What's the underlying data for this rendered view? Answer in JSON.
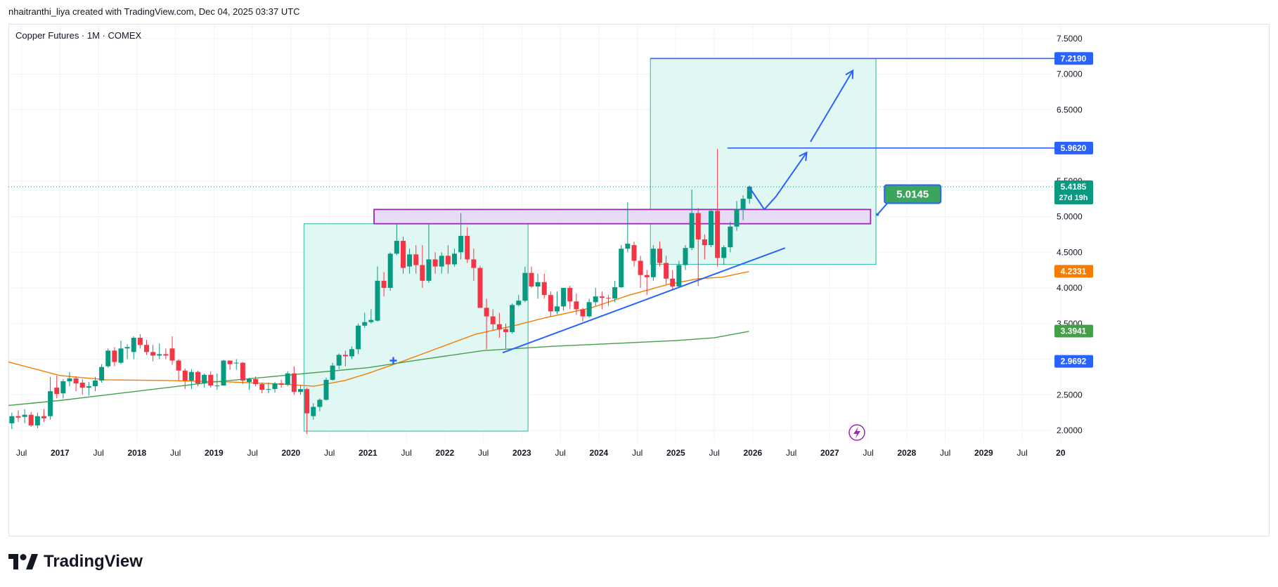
{
  "caption": "nhaitranthi_liya created with TradingView.com, Dec 04, 2025 03:37 UTC",
  "brand": {
    "name": "TradingView",
    "logo_icon": "tradingview-logo-icon"
  },
  "colors": {
    "up": "#089981",
    "down": "#f23645",
    "ma_fast": "#f57c00",
    "ma_slow": "#43a047",
    "trend": "#2962ff",
    "zone_fill": "#e0f7f4",
    "zone_border": "#4dbfae",
    "resistance_fill": "#e6dcf5",
    "resistance_border": "#9c27b0",
    "grid": "#f0f3fa"
  },
  "chart_data": {
    "type": "candlestick",
    "title": "Copper Futures · 1M · COMEX",
    "ylim": [
      1.92,
      7.7
    ],
    "y_ticks": [
      "2.0000",
      "2.5000",
      "3.0000",
      "3.5000",
      "4.0000",
      "4.5000",
      "5.0000",
      "5.5000",
      "6.5000",
      "7.0000",
      "7.5000"
    ],
    "x_ticks": [
      {
        "label": "Jul",
        "t": 2016.5,
        "bold": false
      },
      {
        "label": "2017",
        "t": 2017.0,
        "bold": true
      },
      {
        "label": "Jul",
        "t": 2017.5,
        "bold": false
      },
      {
        "label": "2018",
        "t": 2018.0,
        "bold": true
      },
      {
        "label": "Jul",
        "t": 2018.5,
        "bold": false
      },
      {
        "label": "2019",
        "t": 2019.0,
        "bold": true
      },
      {
        "label": "Jul",
        "t": 2019.5,
        "bold": false
      },
      {
        "label": "2020",
        "t": 2020.0,
        "bold": true
      },
      {
        "label": "Jul",
        "t": 2020.5,
        "bold": false
      },
      {
        "label": "2021",
        "t": 2021.0,
        "bold": true
      },
      {
        "label": "Jul",
        "t": 2021.5,
        "bold": false
      },
      {
        "label": "2022",
        "t": 2022.0,
        "bold": true
      },
      {
        "label": "Jul",
        "t": 2022.5,
        "bold": false
      },
      {
        "label": "2023",
        "t": 2023.0,
        "bold": true
      },
      {
        "label": "Jul",
        "t": 2023.5,
        "bold": false
      },
      {
        "label": "2024",
        "t": 2024.0,
        "bold": true
      },
      {
        "label": "Jul",
        "t": 2024.5,
        "bold": false
      },
      {
        "label": "2025",
        "t": 2025.0,
        "bold": true
      },
      {
        "label": "Jul",
        "t": 2025.5,
        "bold": false
      },
      {
        "label": "2026",
        "t": 2026.0,
        "bold": true
      },
      {
        "label": "Jul",
        "t": 2026.5,
        "bold": false
      },
      {
        "label": "2027",
        "t": 2027.0,
        "bold": true
      },
      {
        "label": "Jul",
        "t": 2027.5,
        "bold": false
      },
      {
        "label": "2028",
        "t": 2028.0,
        "bold": true
      },
      {
        "label": "Jul",
        "t": 2028.5,
        "bold": false
      },
      {
        "label": "2029",
        "t": 2029.0,
        "bold": true
      },
      {
        "label": "Jul",
        "t": 2029.5,
        "bold": false
      },
      {
        "label": "20",
        "t": 2030.0,
        "bold": true
      }
    ],
    "candles": [
      [
        "2016-05",
        2.1,
        2.25,
        2.02,
        2.2
      ],
      [
        "2016-06",
        2.2,
        2.28,
        2.12,
        2.18
      ],
      [
        "2016-07",
        2.19,
        2.3,
        2.1,
        2.22
      ],
      [
        "2016-08",
        2.22,
        2.26,
        2.05,
        2.07
      ],
      [
        "2016-09",
        2.07,
        2.25,
        2.03,
        2.2
      ],
      [
        "2016-10",
        2.2,
        2.3,
        2.12,
        2.17
      ],
      [
        "2016-11",
        2.2,
        2.75,
        2.15,
        2.55
      ],
      [
        "2016-12",
        2.6,
        2.77,
        2.45,
        2.51
      ],
      [
        "2017-01",
        2.52,
        2.72,
        2.45,
        2.69
      ],
      [
        "2017-02",
        2.69,
        2.82,
        2.62,
        2.73
      ],
      [
        "2017-03",
        2.73,
        2.76,
        2.55,
        2.66
      ],
      [
        "2017-04",
        2.67,
        2.72,
        2.5,
        2.6
      ],
      [
        "2017-05",
        2.6,
        2.68,
        2.49,
        2.62
      ],
      [
        "2017-06",
        2.62,
        2.75,
        2.55,
        2.7
      ],
      [
        "2017-07",
        2.7,
        2.93,
        2.67,
        2.89
      ],
      [
        "2017-08",
        2.9,
        3.15,
        2.88,
        3.12
      ],
      [
        "2017-09",
        3.12,
        3.17,
        2.9,
        2.96
      ],
      [
        "2017-10",
        2.95,
        3.26,
        2.93,
        3.15
      ],
      [
        "2017-11",
        3.15,
        3.21,
        3.0,
        3.17
      ],
      [
        "2017-12",
        3.1,
        3.32,
        3.0,
        3.3
      ],
      [
        "2018-01",
        3.3,
        3.35,
        3.15,
        3.2
      ],
      [
        "2018-02",
        3.2,
        3.27,
        3.06,
        3.1
      ],
      [
        "2018-03",
        3.1,
        3.2,
        2.97,
        3.05
      ],
      [
        "2018-04",
        3.05,
        3.22,
        3.0,
        3.07
      ],
      [
        "2018-05",
        3.07,
        3.15,
        3.0,
        3.05
      ],
      [
        "2018-06",
        3.15,
        3.32,
        2.92,
        2.98
      ],
      [
        "2018-07",
        2.98,
        3.0,
        2.7,
        2.84
      ],
      [
        "2018-08",
        2.84,
        2.87,
        2.58,
        2.7
      ],
      [
        "2018-09",
        2.7,
        2.86,
        2.58,
        2.82
      ],
      [
        "2018-10",
        2.82,
        2.84,
        2.62,
        2.66
      ],
      [
        "2018-11",
        2.66,
        2.8,
        2.6,
        2.78
      ],
      [
        "2018-12",
        2.78,
        2.83,
        2.6,
        2.63
      ],
      [
        "2019-01",
        2.63,
        2.8,
        2.57,
        2.63
      ],
      [
        "2019-02",
        2.63,
        2.99,
        2.63,
        2.98
      ],
      [
        "2019-03",
        2.98,
        2.98,
        2.85,
        2.93
      ],
      [
        "2019-04",
        2.94,
        3.0,
        2.85,
        2.95
      ],
      [
        "2019-05",
        2.95,
        2.96,
        2.65,
        2.7
      ],
      [
        "2019-06",
        2.68,
        2.74,
        2.57,
        2.72
      ],
      [
        "2019-07",
        2.72,
        2.76,
        2.62,
        2.65
      ],
      [
        "2019-08",
        2.65,
        2.67,
        2.52,
        2.57
      ],
      [
        "2019-09",
        2.57,
        2.67,
        2.52,
        2.58
      ],
      [
        "2019-10",
        2.58,
        2.68,
        2.53,
        2.66
      ],
      [
        "2019-11",
        2.66,
        2.71,
        2.6,
        2.64
      ],
      [
        "2019-12",
        2.64,
        2.83,
        2.62,
        2.8
      ],
      [
        "2020-01",
        2.8,
        2.9,
        2.5,
        2.54
      ],
      [
        "2020-02",
        2.54,
        2.64,
        2.5,
        2.58
      ],
      [
        "2020-03",
        2.58,
        2.6,
        1.95,
        2.24
      ],
      [
        "2020-04",
        2.2,
        2.38,
        2.15,
        2.33
      ],
      [
        "2020-05",
        2.33,
        2.45,
        2.27,
        2.43
      ],
      [
        "2020-06",
        2.43,
        2.74,
        2.42,
        2.71
      ],
      [
        "2020-07",
        2.71,
        2.95,
        2.7,
        2.91
      ],
      [
        "2020-08",
        2.91,
        3.08,
        2.86,
        3.06
      ],
      [
        "2020-09",
        3.06,
        3.12,
        2.9,
        3.04
      ],
      [
        "2020-10",
        3.04,
        3.18,
        3.0,
        3.14
      ],
      [
        "2020-11",
        3.14,
        3.5,
        3.07,
        3.47
      ],
      [
        "2020-12",
        3.47,
        3.65,
        3.44,
        3.52
      ],
      [
        "2021-01",
        3.52,
        3.7,
        3.5,
        3.55
      ],
      [
        "2021-02",
        3.54,
        4.3,
        3.53,
        4.1
      ],
      [
        "2021-03",
        4.1,
        4.22,
        3.88,
        4.0
      ],
      [
        "2021-04",
        4.0,
        4.5,
        3.96,
        4.48
      ],
      [
        "2021-05",
        4.48,
        4.9,
        4.46,
        4.66
      ],
      [
        "2021-06",
        4.66,
        4.72,
        4.2,
        4.28
      ],
      [
        "2021-07",
        4.3,
        4.55,
        4.2,
        4.47
      ],
      [
        "2021-08",
        4.47,
        4.6,
        4.2,
        4.32
      ],
      [
        "2021-09",
        4.32,
        4.6,
        4.0,
        4.1
      ],
      [
        "2021-10",
        4.1,
        4.9,
        4.07,
        4.4
      ],
      [
        "2021-11",
        4.4,
        4.5,
        4.2,
        4.3
      ],
      [
        "2021-12",
        4.3,
        4.5,
        4.2,
        4.45
      ],
      [
        "2022-01",
        4.45,
        4.6,
        4.2,
        4.33
      ],
      [
        "2022-02",
        4.33,
        4.55,
        4.3,
        4.48
      ],
      [
        "2022-03",
        4.5,
        5.05,
        4.4,
        4.73
      ],
      [
        "2022-04",
        4.73,
        4.85,
        4.35,
        4.4
      ],
      [
        "2022-05",
        4.4,
        4.55,
        4.1,
        4.28
      ],
      [
        "2022-06",
        4.28,
        4.31,
        3.72,
        3.72
      ],
      [
        "2022-07",
        3.72,
        3.85,
        3.14,
        3.6
      ],
      [
        "2022-08",
        3.6,
        3.7,
        3.4,
        3.49
      ],
      [
        "2022-09",
        3.49,
        3.65,
        3.3,
        3.42
      ],
      [
        "2022-10",
        3.42,
        3.5,
        3.15,
        3.38
      ],
      [
        "2022-11",
        3.38,
        3.78,
        3.36,
        3.76
      ],
      [
        "2022-12",
        3.76,
        3.9,
        3.74,
        3.82
      ],
      [
        "2023-01",
        3.82,
        4.3,
        3.8,
        4.21
      ],
      [
        "2023-02",
        4.21,
        4.3,
        4.0,
        4.02
      ],
      [
        "2023-03",
        4.02,
        4.2,
        3.85,
        4.08
      ],
      [
        "2023-04",
        4.08,
        4.2,
        3.85,
        3.9
      ],
      [
        "2023-05",
        3.9,
        3.95,
        3.6,
        3.67
      ],
      [
        "2023-06",
        3.67,
        3.95,
        3.63,
        3.74
      ],
      [
        "2023-07",
        3.74,
        4.0,
        3.68,
        4.0
      ],
      [
        "2023-08",
        4.0,
        4.03,
        3.7,
        3.81
      ],
      [
        "2023-09",
        3.81,
        3.92,
        3.62,
        3.7
      ],
      [
        "2023-10",
        3.7,
        3.72,
        3.53,
        3.6
      ],
      [
        "2023-11",
        3.6,
        3.85,
        3.58,
        3.8
      ],
      [
        "2023-12",
        3.8,
        4.0,
        3.75,
        3.88
      ],
      [
        "2024-01",
        3.88,
        3.95,
        3.7,
        3.86
      ],
      [
        "2024-02",
        3.86,
        3.9,
        3.75,
        3.85
      ],
      [
        "2024-03",
        3.85,
        4.1,
        3.8,
        4.01
      ],
      [
        "2024-04",
        4.01,
        4.6,
        4.0,
        4.55
      ],
      [
        "2024-05",
        4.55,
        5.2,
        4.5,
        4.62
      ],
      [
        "2024-06",
        4.6,
        4.65,
        4.3,
        4.38
      ],
      [
        "2024-07",
        4.38,
        4.45,
        4.0,
        4.18
      ],
      [
        "2024-08",
        4.18,
        4.25,
        3.9,
        4.15
      ],
      [
        "2024-09",
        4.15,
        4.6,
        4.1,
        4.55
      ],
      [
        "2024-10",
        4.55,
        4.65,
        4.3,
        4.35
      ],
      [
        "2024-11",
        4.35,
        4.45,
        4.05,
        4.13
      ],
      [
        "2024-12",
        4.13,
        4.25,
        3.98,
        4.02
      ],
      [
        "2025-01",
        4.02,
        4.38,
        4.0,
        4.32
      ],
      [
        "2025-02",
        4.32,
        4.6,
        4.25,
        4.56
      ],
      [
        "2025-03",
        4.56,
        5.38,
        4.53,
        5.05
      ],
      [
        "2025-04",
        5.05,
        5.12,
        4.03,
        4.68
      ],
      [
        "2025-05",
        4.68,
        4.75,
        4.4,
        4.6
      ],
      [
        "2025-06",
        4.6,
        5.1,
        4.57,
        5.08
      ],
      [
        "2025-07",
        5.08,
        5.95,
        4.3,
        4.42
      ],
      [
        "2025-08",
        4.42,
        4.6,
        4.32,
        4.57
      ],
      [
        "2025-09",
        4.57,
        4.93,
        4.5,
        4.86
      ],
      [
        "2025-10",
        4.86,
        5.22,
        4.8,
        5.1
      ],
      [
        "2025-11",
        5.1,
        5.3,
        4.95,
        5.25
      ],
      [
        "2025-12",
        5.25,
        5.44,
        5.18,
        5.42
      ]
    ],
    "series": [
      {
        "name": "",
        "color": "#f57c00",
        "points": [
          [
            2016.33,
            2.96
          ],
          [
            2017.0,
            2.77
          ],
          [
            2017.6,
            2.71
          ],
          [
            2018.4,
            2.7
          ],
          [
            2019.2,
            2.68
          ],
          [
            2019.9,
            2.65
          ],
          [
            2020.3,
            2.62
          ],
          [
            2020.7,
            2.7
          ],
          [
            2021.0,
            2.8
          ],
          [
            2021.4,
            2.95
          ],
          [
            2021.9,
            3.15
          ],
          [
            2022.4,
            3.35
          ],
          [
            2022.9,
            3.47
          ],
          [
            2023.3,
            3.58
          ],
          [
            2023.9,
            3.72
          ],
          [
            2024.4,
            3.9
          ],
          [
            2024.9,
            4.05
          ],
          [
            2025.3,
            4.13
          ],
          [
            2025.6,
            4.15
          ],
          [
            2025.95,
            4.23
          ]
        ]
      },
      {
        "name": "",
        "color": "#43a047",
        "points": [
          [
            2016.33,
            2.35
          ],
          [
            2017.0,
            2.42
          ],
          [
            2018.0,
            2.55
          ],
          [
            2019.0,
            2.68
          ],
          [
            2020.0,
            2.78
          ],
          [
            2021.0,
            2.88
          ],
          [
            2021.6,
            2.98
          ],
          [
            2022.5,
            3.12
          ],
          [
            2023.4,
            3.18
          ],
          [
            2024.2,
            3.22
          ],
          [
            2025.0,
            3.26
          ],
          [
            2025.5,
            3.3
          ],
          [
            2025.95,
            3.39
          ]
        ]
      }
    ],
    "drawings": {
      "zone1": {
        "t1": 2020.17,
        "t2": 2023.08,
        "p1": 1.99,
        "p2": 4.9
      },
      "zone2": {
        "t1": 2024.67,
        "t2": 2027.6,
        "p1": 4.33,
        "p2": 7.219
      },
      "resistance": {
        "t1": 2021.08,
        "t2": 2027.53,
        "p1": 4.9,
        "p2": 5.1
      },
      "trendline": {
        "t1": 2022.75,
        "p1": 3.09,
        "t2": 2026.42,
        "p2": 4.56
      },
      "level_7219": {
        "t1": 2024.67,
        "price": 7.219
      },
      "level_5962": {
        "t1": 2025.67,
        "price": 5.962
      },
      "current_price": 5.4185,
      "projection_path": [
        [
          2025.95,
          5.42
        ],
        [
          2026.15,
          5.1
        ],
        [
          2026.3,
          5.28
        ],
        [
          2026.7,
          5.9
        ]
      ],
      "projection_path_2": [
        [
          2026.75,
          6.05
        ],
        [
          2027.3,
          7.05
        ]
      ],
      "cross_marker": {
        "t": 2021.33,
        "p": 2.98
      },
      "callout": {
        "label": "5.0145",
        "anchor_t": 2027.62,
        "anchor_p": 5.03
      }
    },
    "price_labels": [
      {
        "text": "7.2190",
        "price": 7.219,
        "color": "#2962ff"
      },
      {
        "text": "5.9620",
        "price": 5.962,
        "color": "#2962ff"
      },
      {
        "text": "5.4185",
        "price": 5.4185,
        "color": "#089981",
        "sub": "27d 19h"
      },
      {
        "text": "4.2331",
        "price": 4.2331,
        "color": "#f57c00"
      },
      {
        "text": "3.3941",
        "price": 3.3941,
        "color": "#43a047"
      },
      {
        "text": "2.9692",
        "price": 2.9692,
        "color": "#2962ff"
      }
    ]
  }
}
